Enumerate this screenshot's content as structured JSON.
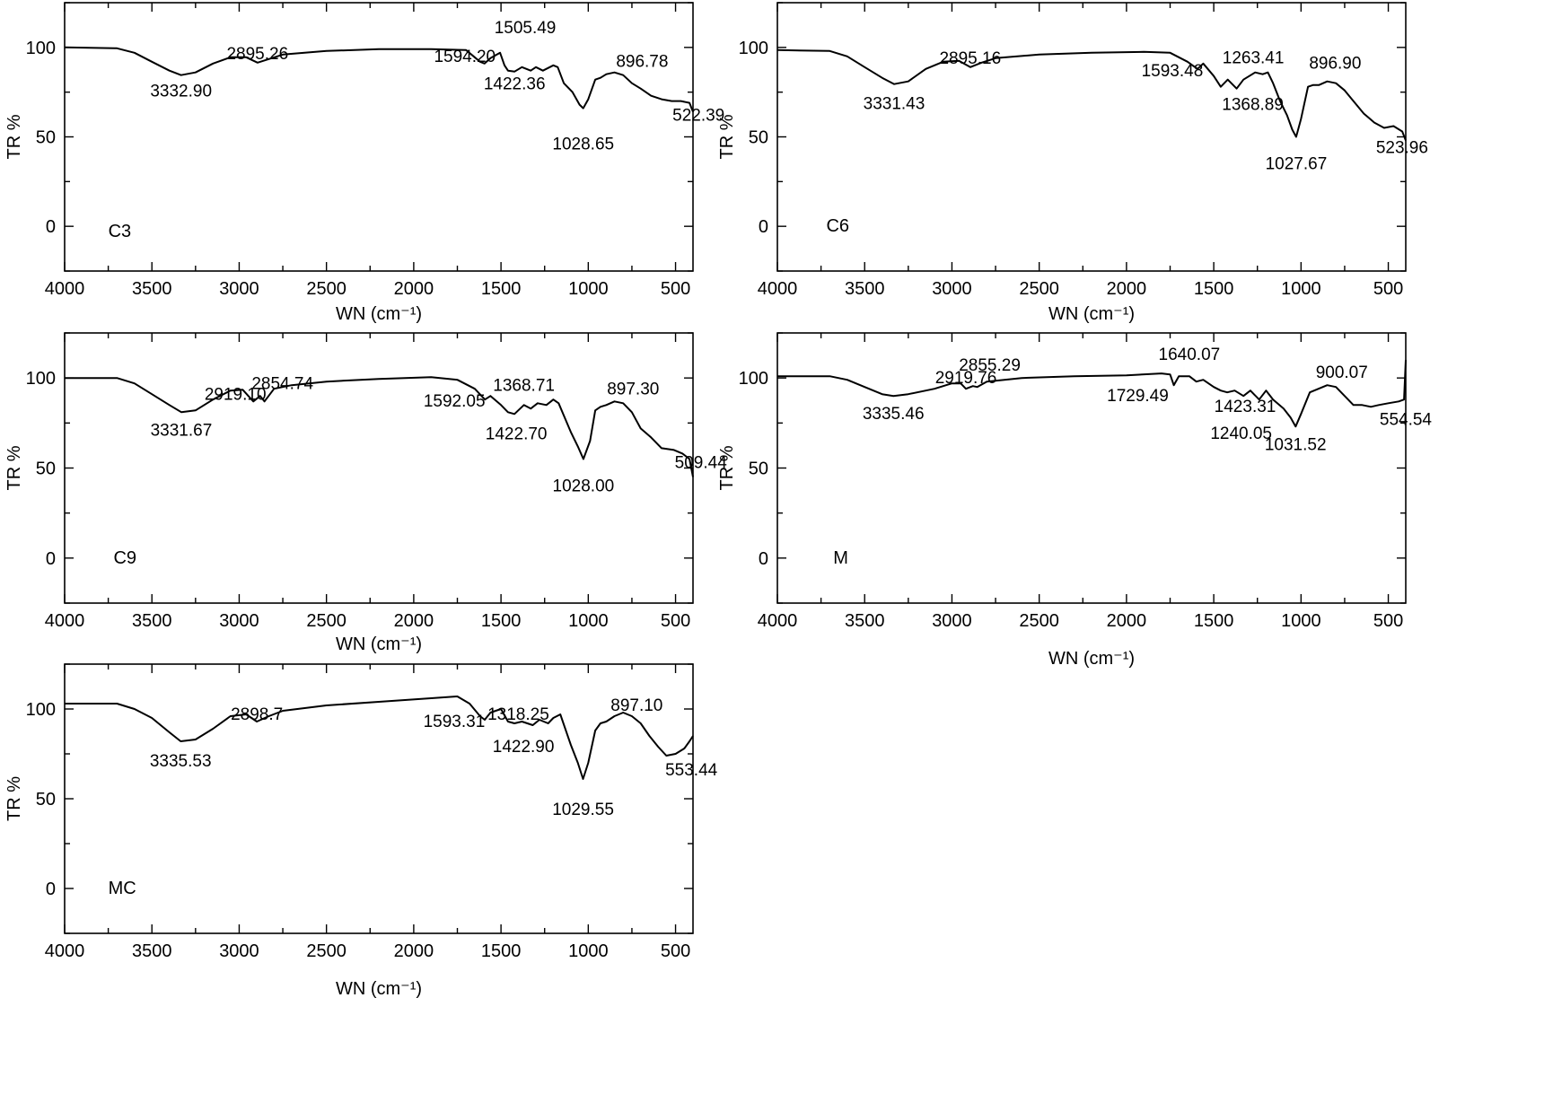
{
  "chart_data": [
    {
      "type": "line",
      "sample": "C3",
      "xlabel": "WN (cm⁻¹)",
      "ylabel": "TR %",
      "xlim": [
        4000,
        400
      ],
      "ylim": [
        -25,
        125
      ],
      "xticks": [
        4000,
        3500,
        3000,
        2500,
        2000,
        1500,
        1000,
        500
      ],
      "yticks": [
        0,
        50,
        100
      ],
      "grid": false,
      "series": [
        {
          "x": [
            4000,
            3700,
            3600,
            3500,
            3400,
            3333,
            3250,
            3150,
            3050,
            2960,
            2895,
            2830,
            2750,
            2500,
            2200,
            1900,
            1700,
            1620,
            1594,
            1560,
            1505,
            1480,
            1460,
            1422,
            1380,
            1330,
            1300,
            1260,
            1200,
            1175,
            1140,
            1090,
            1050,
            1029,
            1000,
            960,
            930,
            897,
            850,
            800,
            750,
            700,
            640,
            580,
            522,
            470,
            420,
            400
          ],
          "y": [
            100,
            99.5,
            97,
            92,
            87,
            84.5,
            86,
            91,
            94.5,
            94.5,
            91.5,
            93.5,
            96,
            98,
            99,
            99,
            98.5,
            92,
            91,
            94,
            97,
            90,
            87,
            86.5,
            89,
            87,
            89,
            87,
            90,
            89,
            80,
            75,
            68,
            66,
            71,
            82,
            83,
            85,
            86,
            84.5,
            80,
            77,
            73,
            71,
            70,
            70,
            69,
            64
          ]
        }
      ],
      "peak_labels": [
        {
          "text": "3332.90",
          "x": 3332.9,
          "y": 84.5
        },
        {
          "text": "2895.26",
          "x": 2895.26,
          "y": 91.5
        },
        {
          "text": "1594.20",
          "x": 1594.2,
          "y": 91
        },
        {
          "text": "1505.49",
          "x": 1505.49,
          "y": 97
        },
        {
          "text": "1422.36",
          "x": 1422.36,
          "y": 86.5
        },
        {
          "text": "1028.65",
          "x": 1028.65,
          "y": 66
        },
        {
          "text": "896.78",
          "x": 896.78,
          "y": 85
        },
        {
          "text": "522.39",
          "x": 522.39,
          "y": 70
        }
      ],
      "sample_label_pos": {
        "x": 3750,
        "y": -6
      }
    },
    {
      "type": "line",
      "sample": "C6",
      "xlabel": "WN (cm⁻¹)",
      "ylabel": "TR %",
      "xlim": [
        4000,
        400
      ],
      "ylim": [
        -25,
        125
      ],
      "xticks": [
        4000,
        3500,
        3000,
        2500,
        2000,
        1500,
        1000,
        500
      ],
      "yticks": [
        0,
        50,
        100
      ],
      "grid": false,
      "series": [
        {
          "x": [
            4000,
            3700,
            3600,
            3500,
            3400,
            3331,
            3250,
            3150,
            3050,
            2960,
            2895,
            2830,
            2750,
            2500,
            2200,
            1900,
            1750,
            1650,
            1593,
            1560,
            1500,
            1460,
            1420,
            1369,
            1330,
            1263,
            1220,
            1190,
            1160,
            1120,
            1080,
            1050,
            1028,
            1000,
            960,
            930,
            897,
            850,
            800,
            750,
            700,
            640,
            580,
            524,
            470,
            420,
            400
          ],
          "y": [
            98.5,
            98,
            95,
            89,
            83,
            79.5,
            81,
            88,
            92,
            92.5,
            89,
            91.5,
            94,
            96,
            97,
            97.5,
            97,
            92,
            88,
            91,
            84,
            78,
            82,
            77,
            82,
            86,
            85,
            86,
            80,
            70,
            62,
            54,
            50,
            60,
            78,
            79,
            79,
            81,
            80,
            76,
            70,
            63,
            58,
            55,
            56,
            53,
            48
          ]
        }
      ],
      "peak_labels": [
        {
          "text": "3331.43",
          "x": 3331.43,
          "y": 79.5
        },
        {
          "text": "2895.16",
          "x": 2895.16,
          "y": 89
        },
        {
          "text": "1593.48",
          "x": 1593.48,
          "y": 88
        },
        {
          "text": "1368.89",
          "x": 1368.89,
          "y": 77
        },
        {
          "text": "1263.41",
          "x": 1263.41,
          "y": 86
        },
        {
          "text": "1027.67",
          "x": 1027.67,
          "y": 50
        },
        {
          "text": "896.90",
          "x": 896.9,
          "y": 79
        },
        {
          "text": "523.96",
          "x": 523.96,
          "y": 55
        }
      ],
      "sample_label_pos": {
        "x": 3720,
        "y": -3
      }
    },
    {
      "type": "line",
      "sample": "C9",
      "xlabel": "WN (cm⁻¹)",
      "ylabel": "TR %",
      "xlim": [
        4000,
        400
      ],
      "ylim": [
        -25,
        125
      ],
      "xticks": [
        4000,
        3500,
        3000,
        2500,
        2000,
        1500,
        1000,
        500
      ],
      "yticks": [
        0,
        50,
        100
      ],
      "grid": false,
      "series": [
        {
          "x": [
            4000,
            3700,
            3600,
            3500,
            3400,
            3331,
            3250,
            3150,
            3050,
            2980,
            2919,
            2880,
            2855,
            2800,
            2700,
            2500,
            2200,
            1900,
            1750,
            1650,
            1592,
            1560,
            1500,
            1460,
            1423,
            1369,
            1330,
            1290,
            1240,
            1200,
            1170,
            1100,
            1060,
            1028,
            990,
            960,
            930,
            897,
            850,
            800,
            750,
            700,
            640,
            580,
            509,
            460,
            420,
            400
          ],
          "y": [
            100,
            100,
            97,
            91,
            85,
            81,
            82,
            88,
            93,
            93.5,
            87,
            90,
            87,
            94,
            96,
            98,
            99.5,
            100.5,
            99,
            94,
            88,
            90,
            85,
            81,
            80,
            85,
            83,
            86,
            85,
            88,
            86,
            70,
            62,
            55,
            65,
            82,
            84,
            85,
            87,
            86,
            81,
            72,
            67,
            61,
            60,
            58,
            55,
            45
          ]
        }
      ],
      "peak_labels": [
        {
          "text": "3331.67",
          "x": 3331.67,
          "y": 81
        },
        {
          "text": "2919.10",
          "x": 2919.1,
          "y": 87
        },
        {
          "text": "2854.74",
          "x": 2854.74,
          "y": 87
        },
        {
          "text": "1592.05",
          "x": 1592.05,
          "y": 88
        },
        {
          "text": "1422.70",
          "x": 1422.7,
          "y": 80
        },
        {
          "text": "1368.71",
          "x": 1368.71,
          "y": 85
        },
        {
          "text": "1028.00",
          "x": 1028.0,
          "y": 55
        },
        {
          "text": "897.30",
          "x": 897.3,
          "y": 85
        },
        {
          "text": "509.44",
          "x": 509.44,
          "y": 60
        }
      ],
      "sample_label_pos": {
        "x": 3720,
        "y": -3
      }
    },
    {
      "type": "line",
      "sample": "M",
      "xlabel": "WN (cm⁻¹)",
      "ylabel": "TR %",
      "xlim": [
        4000,
        400
      ],
      "ylim": [
        -25,
        125
      ],
      "xticks": [
        4000,
        3500,
        3000,
        2500,
        2000,
        1500,
        1000,
        500
      ],
      "yticks": [
        0,
        50,
        100
      ],
      "grid": false,
      "series": [
        {
          "x": [
            4000,
            3700,
            3600,
            3500,
            3400,
            3335,
            3250,
            3100,
            3000,
            2950,
            2920,
            2880,
            2855,
            2800,
            2600,
            2300,
            2000,
            1800,
            1750,
            1729,
            1700,
            1640,
            1600,
            1560,
            1500,
            1460,
            1423,
            1380,
            1330,
            1290,
            1240,
            1200,
            1160,
            1100,
            1060,
            1031,
            1000,
            950,
            900,
            850,
            800,
            750,
            700,
            650,
            600,
            555,
            500,
            440,
            410,
            400
          ],
          "y": [
            101,
            101,
            99,
            95,
            91,
            90,
            91,
            94,
            97,
            97,
            94,
            95.5,
            95,
            98,
            100,
            101,
            101.5,
            102.5,
            102,
            96,
            101,
            101,
            98,
            99,
            95,
            93,
            92,
            93,
            90,
            93,
            88,
            93,
            88,
            83,
            78,
            73,
            80,
            92,
            94,
            96,
            95,
            90,
            85,
            85,
            84,
            85,
            86,
            87,
            88,
            110
          ]
        }
      ],
      "peak_labels": [
        {
          "text": "3335.46",
          "x": 3335.46,
          "y": 90
        },
        {
          "text": "2919.76",
          "x": 2919.76,
          "y": 94
        },
        {
          "text": "2855.29",
          "x": 2855.29,
          "y": 95
        },
        {
          "text": "1729.49",
          "x": 1729.49,
          "y": 96
        },
        {
          "text": "1640.07",
          "x": 1640.07,
          "y": 101
        },
        {
          "text": "1423.31",
          "x": 1423.31,
          "y": 92
        },
        {
          "text": "1240.05",
          "x": 1240.05,
          "y": 88
        },
        {
          "text": "1031.52",
          "x": 1031.52,
          "y": 73
        },
        {
          "text": "900.07",
          "x": 900.07,
          "y": 94
        },
        {
          "text": "554.54",
          "x": 554.54,
          "y": 85
        }
      ],
      "sample_label_pos": {
        "x": 3680,
        "y": -3
      }
    },
    {
      "type": "line",
      "sample": "MC",
      "xlabel": "WN (cm⁻¹)",
      "ylabel": "TR %",
      "xlim": [
        4000,
        400
      ],
      "ylim": [
        -25,
        125
      ],
      "xticks": [
        4000,
        3500,
        3000,
        2500,
        2000,
        1500,
        1000,
        500
      ],
      "yticks": [
        0,
        50,
        100
      ],
      "grid": false,
      "series": [
        {
          "x": [
            4000,
            3700,
            3600,
            3500,
            3400,
            3335,
            3250,
            3150,
            3050,
            2960,
            2899,
            2830,
            2750,
            2500,
            2200,
            1900,
            1750,
            1680,
            1620,
            1593,
            1560,
            1500,
            1460,
            1423,
            1380,
            1318,
            1280,
            1230,
            1200,
            1160,
            1100,
            1060,
            1030,
            1000,
            960,
            930,
            897,
            850,
            800,
            750,
            700,
            650,
            600,
            553,
            500,
            450,
            420,
            400
          ],
          "y": [
            103,
            103,
            100,
            95,
            87,
            82,
            83,
            89,
            96,
            97,
            93,
            96,
            99,
            102,
            104,
            106,
            107,
            103,
            96,
            94,
            98,
            100,
            93,
            92,
            93,
            91,
            94,
            92,
            95,
            97,
            80,
            70,
            61,
            70,
            88,
            92,
            93,
            96,
            98,
            96,
            92,
            85,
            79,
            74,
            75,
            78,
            82,
            85
          ]
        }
      ],
      "peak_labels": [
        {
          "text": "3335.53",
          "x": 3335.53,
          "y": 82
        },
        {
          "text": "2898.7",
          "x": 2898.7,
          "y": 93
        },
        {
          "text": "1593.31",
          "x": 1593.31,
          "y": 94
        },
        {
          "text": "1318.25",
          "x": 1318.25,
          "y": 91
        },
        {
          "text": "1422.90",
          "x": 1422.9,
          "y": 92
        },
        {
          "text": "1029.55",
          "x": 1029.55,
          "y": 61
        },
        {
          "text": "897.10",
          "x": 897.1,
          "y": 93
        },
        {
          "text": "553.44",
          "x": 553.44,
          "y": 74
        }
      ],
      "sample_label_pos": {
        "x": 3750,
        "y": -3
      }
    }
  ]
}
